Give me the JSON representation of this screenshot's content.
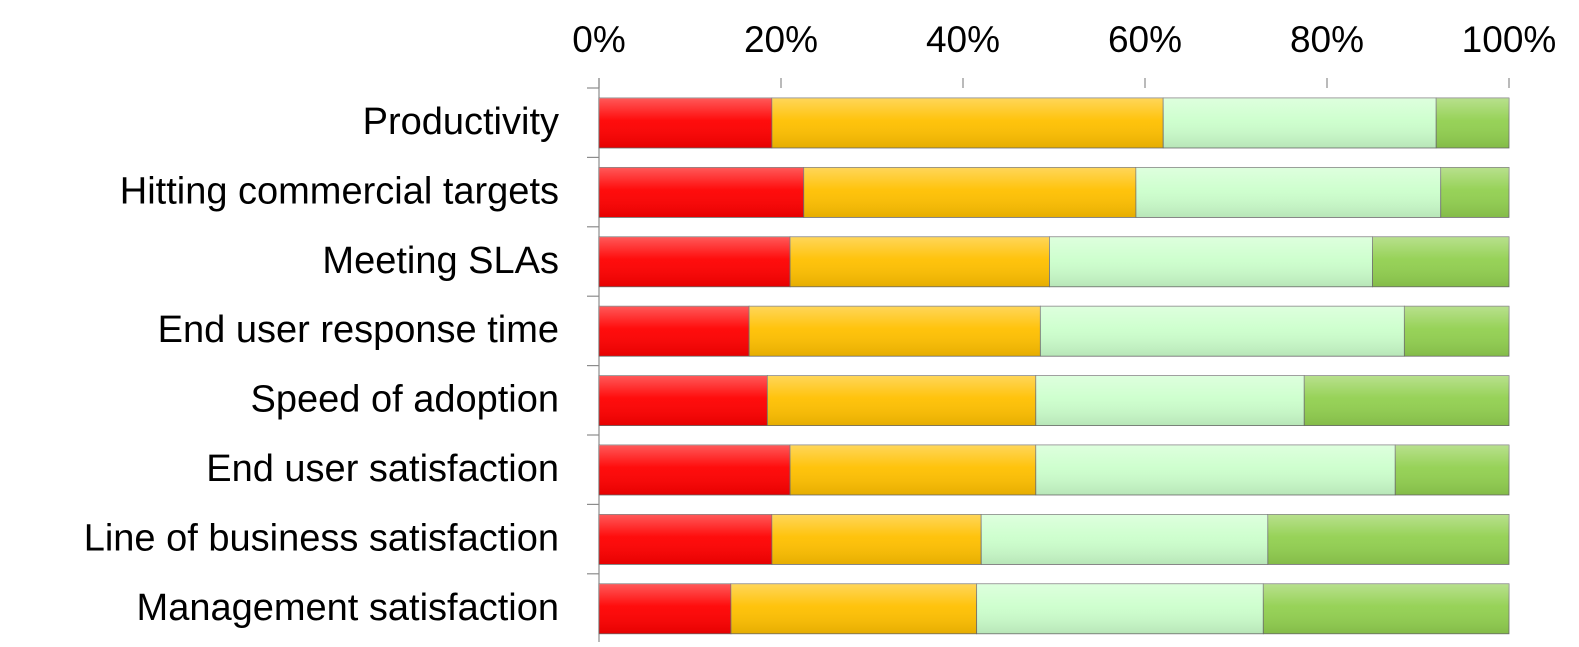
{
  "chart_data": {
    "type": "bar",
    "orientation": "horizontal",
    "stacked": true,
    "normalized_percent": true,
    "xlim": [
      0,
      100
    ],
    "x_tick_labels": [
      "0%",
      "20%",
      "40%",
      "60%",
      "80%",
      "100%"
    ],
    "x_tick_values": [
      0,
      20,
      40,
      60,
      80,
      100
    ],
    "x_axis_position": "top",
    "grid": false,
    "legend": "none",
    "categories": [
      "Productivity",
      "Hitting commercial targets",
      "Meeting SLAs",
      "End user response time",
      "Speed of adoption",
      "End user satisfaction",
      "Line of business satisfaction",
      "Management satisfaction"
    ],
    "series": [
      {
        "color": "#ff0000",
        "values": [
          19,
          22.5,
          21,
          16.5,
          18.5,
          21,
          19,
          14.5
        ]
      },
      {
        "color": "#ffc000",
        "values": [
          43,
          36.5,
          28.5,
          32,
          29.5,
          27,
          23,
          27
        ]
      },
      {
        "color": "#ccffcc",
        "values": [
          30,
          33.5,
          35.5,
          40,
          29.5,
          39.5,
          31.5,
          31.5
        ]
      },
      {
        "color": "#92d050",
        "values": [
          8,
          7.5,
          15,
          11.5,
          22.5,
          12.5,
          26.5,
          27
        ]
      }
    ]
  }
}
